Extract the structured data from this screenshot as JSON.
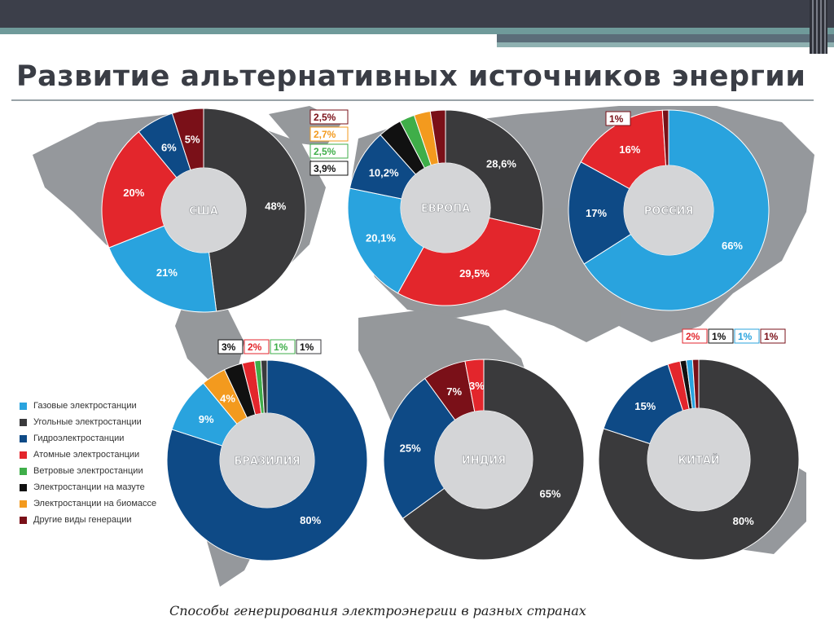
{
  "slide": {
    "title": "Развитие альтернативных источников энергии",
    "caption": "Способы генерирования электроэнергии в разных странах"
  },
  "colors": {
    "gas": "#29a3de",
    "coal": "#3a3a3c",
    "hydro": "#0e4a86",
    "nuclear": "#e3262c",
    "wind": "#3fae49",
    "oil": "#111111",
    "biomass": "#f39a1e",
    "other": "#7a1018",
    "map": "#8a8d91"
  },
  "legend": [
    {
      "key": "gas",
      "label": "Газовые электростанции"
    },
    {
      "key": "coal",
      "label": "Угольные электростанции"
    },
    {
      "key": "hydro",
      "label": "Гидроэлектростанции"
    },
    {
      "key": "nuclear",
      "label": "Атомные электростанции"
    },
    {
      "key": "wind",
      "label": "Ветровые электростанции"
    },
    {
      "key": "oil",
      "label": "Электростанции на мазуте"
    },
    {
      "key": "biomass",
      "label": "Электростанции на биомассе"
    },
    {
      "key": "other",
      "label": "Другие виды генерации"
    }
  ],
  "chart_data": [
    {
      "type": "pie",
      "donut": true,
      "title": "США",
      "slices": [
        {
          "key": "coal",
          "value": 48,
          "label": "48%"
        },
        {
          "key": "gas",
          "value": 21,
          "label": "21%"
        },
        {
          "key": "nuclear",
          "value": 20,
          "label": "20%"
        },
        {
          "key": "hydro",
          "value": 6,
          "label": "6%"
        },
        {
          "key": "other",
          "value": 5,
          "label": "5%"
        }
      ]
    },
    {
      "type": "pie",
      "donut": true,
      "title": "ЕВРОПА",
      "slices": [
        {
          "key": "coal",
          "value": 28.6,
          "label": "28,6%"
        },
        {
          "key": "nuclear",
          "value": 29.5,
          "label": "29,5%"
        },
        {
          "key": "gas",
          "value": 20.1,
          "label": "20,1%"
        },
        {
          "key": "hydro",
          "value": 10.2,
          "label": "10,2%"
        },
        {
          "key": "oil",
          "value": 3.9,
          "label": "3,9%"
        },
        {
          "key": "wind",
          "value": 2.5,
          "label": "2,5%"
        },
        {
          "key": "biomass",
          "value": 2.7,
          "label": "2,7%"
        },
        {
          "key": "other",
          "value": 2.5,
          "label": "2,5%"
        }
      ]
    },
    {
      "type": "pie",
      "donut": true,
      "title": "РОССИЯ",
      "slices": [
        {
          "key": "gas",
          "value": 66,
          "label": "66%"
        },
        {
          "key": "oil",
          "value": 0,
          "label": ""
        },
        {
          "key": "hydro",
          "value": 17,
          "label": "17%"
        },
        {
          "key": "nuclear",
          "value": 16,
          "label": "16%"
        },
        {
          "key": "other",
          "value": 1,
          "label": "1%"
        }
      ]
    },
    {
      "type": "pie",
      "donut": true,
      "title": "БРАЗИЛИЯ",
      "slices": [
        {
          "key": "hydro",
          "value": 80,
          "label": "80%"
        },
        {
          "key": "gas",
          "value": 9,
          "label": "9%"
        },
        {
          "key": "biomass",
          "value": 4,
          "label": "4%"
        },
        {
          "key": "oil",
          "value": 3,
          "label": "3%"
        },
        {
          "key": "nuclear",
          "value": 2,
          "label": "2%"
        },
        {
          "key": "wind",
          "value": 1,
          "label": "1%"
        },
        {
          "key": "coal",
          "value": 1,
          "label": "1%"
        }
      ]
    },
    {
      "type": "pie",
      "donut": true,
      "title": "ИНДИЯ",
      "slices": [
        {
          "key": "gas",
          "value": 0,
          "label": ""
        },
        {
          "key": "coal",
          "value": 65,
          "label": "65%"
        },
        {
          "key": "hydro",
          "value": 25,
          "label": "25%"
        },
        {
          "key": "other",
          "value": 7,
          "label": "7%"
        },
        {
          "key": "nuclear",
          "value": 3,
          "label": "3%"
        }
      ]
    },
    {
      "type": "pie",
      "donut": true,
      "title": "КИТАЙ",
      "slices": [
        {
          "key": "coal",
          "value": 80,
          "label": "80%"
        },
        {
          "key": "hydro",
          "value": 15,
          "label": "15%"
        },
        {
          "key": "nuclear",
          "value": 2,
          "label": "2%"
        },
        {
          "key": "oil",
          "value": 1,
          "label": "1%"
        },
        {
          "key": "gas",
          "value": 1,
          "label": "1%"
        },
        {
          "key": "other",
          "value": 1,
          "label": "1%"
        }
      ]
    }
  ]
}
